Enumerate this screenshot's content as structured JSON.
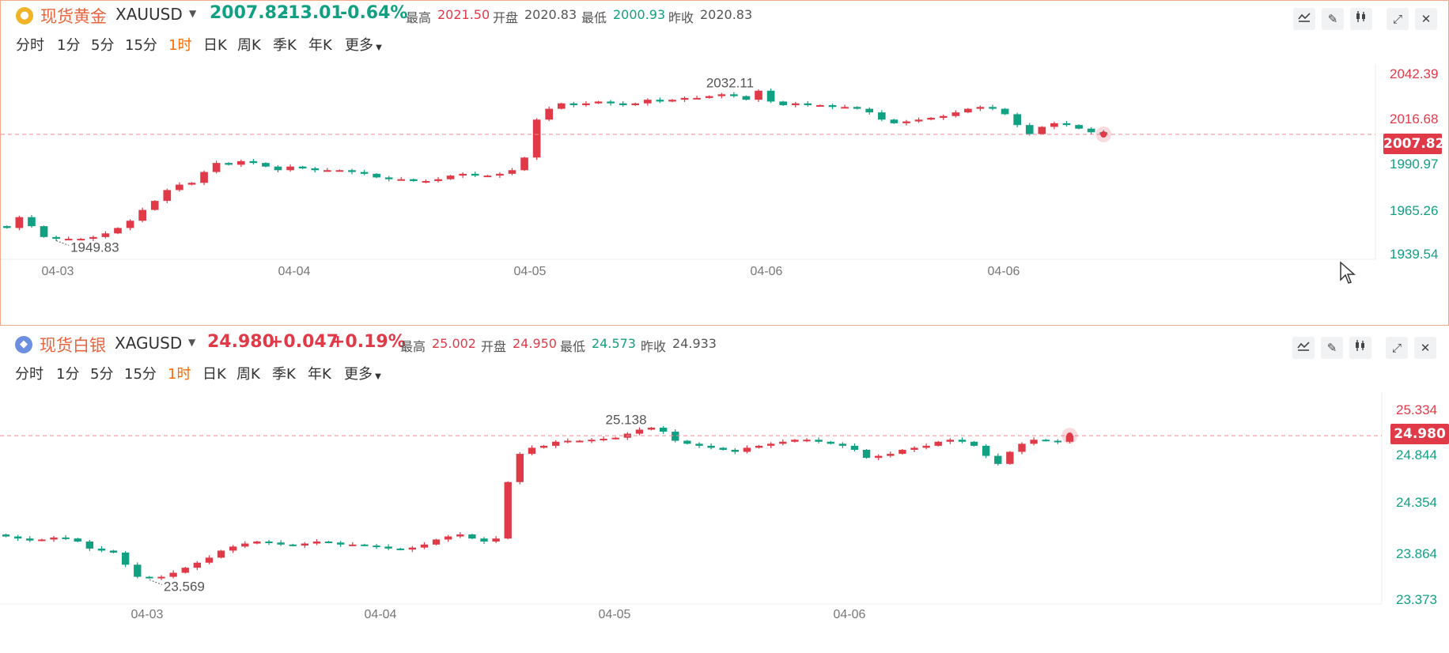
{
  "gold": {
    "name": "现货黄金",
    "code": "XAUUSD",
    "price": "2007.82",
    "change": "-13.01",
    "change_pct": "-0.64%",
    "high_label": "最高",
    "high": "2021.50",
    "open_label": "开盘",
    "open": "2020.83",
    "low_label": "最低",
    "low": "2000.93",
    "prev_label": "昨收",
    "prev": "2020.83",
    "yticks": [
      "2042.39",
      "2016.68",
      "1990.97",
      "1965.26",
      "1939.54"
    ],
    "current_tag": "2007.82",
    "max_marker": "2032.11",
    "min_marker": "1949.83",
    "xticks": [
      "04-03",
      "04-04",
      "04-05",
      "04-06",
      "04-06"
    ]
  },
  "silver": {
    "name": "现货白银",
    "code": "XAGUSD",
    "price": "24.980",
    "change": "+0.047",
    "change_pct": "+0.19%",
    "high_label": "最高",
    "high": "25.002",
    "open_label": "开盘",
    "open": "24.950",
    "low_label": "最低",
    "low": "24.573",
    "prev_label": "昨收",
    "prev": "24.933",
    "yticks": [
      "25.334",
      "24.844",
      "24.354",
      "23.864",
      "23.373"
    ],
    "current_tag": "24.980",
    "max_marker": "25.138",
    "min_marker": "23.569",
    "xticks": [
      "04-03",
      "04-04",
      "04-05",
      "04-06"
    ]
  },
  "periods": [
    "分时",
    "1分",
    "5分",
    "15分",
    "1时",
    "日K",
    "周K",
    "季K",
    "年K",
    "更多"
  ],
  "active_period": "1时",
  "colors": {
    "up": "#e03a48",
    "down": "#12a083",
    "accent": "#ff6a00",
    "name": "#e8643c"
  },
  "tool_icons": [
    "indicator-icon",
    "draw-pencil-icon",
    "candle-style-icon",
    "expand-icon",
    "close-icon"
  ],
  "chart_data": [
    {
      "type": "candlestick",
      "title": "现货黄金 XAUUSD",
      "ylim": [
        1939.54,
        2042.39
      ],
      "current": 2007.82,
      "categories": [
        "04-03",
        "04-04",
        "04-05",
        "04-06",
        "04-06"
      ],
      "close_series": [
        1956,
        1962,
        1957,
        1951,
        1950,
        1950,
        1950,
        1951,
        1953,
        1956,
        1960,
        1966,
        1971,
        1977,
        1980,
        1981,
        1987,
        1992,
        1991,
        1993,
        1992,
        1990,
        1988,
        1990,
        1989,
        1988,
        1988,
        1988,
        1987,
        1986,
        1984,
        1983,
        1983,
        1982,
        1982,
        1983,
        1985,
        1986,
        1985,
        1985,
        1986,
        1988,
        1995,
        2016,
        2022,
        2025,
        2024,
        2025,
        2026,
        2025,
        2024,
        2025,
        2027,
        2026,
        2027,
        2028,
        2028,
        2029,
        2030,
        2029,
        2027,
        2032,
        2026,
        2024,
        2025,
        2024,
        2024,
        2023,
        2023,
        2022,
        2020,
        2016,
        2014,
        2015,
        2016,
        2017,
        2018,
        2020,
        2022,
        2023,
        2022,
        2019,
        2013,
        2008,
        2012,
        2014,
        2013,
        2011,
        2009,
        2007.82
      ]
    },
    {
      "type": "candlestick",
      "title": "现货白银 XAGUSD",
      "ylim": [
        23.373,
        25.334
      ],
      "current": 24.98,
      "categories": [
        "04-03",
        "04-04",
        "04-05",
        "04-06"
      ],
      "close_series": [
        23.98,
        23.96,
        23.94,
        23.95,
        23.97,
        23.96,
        23.93,
        23.86,
        23.84,
        23.82,
        23.7,
        23.58,
        23.57,
        23.58,
        23.62,
        23.67,
        23.72,
        23.77,
        23.84,
        23.88,
        23.91,
        23.93,
        23.92,
        23.9,
        23.89,
        23.91,
        23.93,
        23.92,
        23.9,
        23.9,
        23.89,
        23.88,
        23.86,
        23.85,
        23.87,
        23.9,
        23.95,
        23.98,
        24.0,
        23.96,
        23.93,
        23.96,
        24.52,
        24.8,
        24.86,
        24.88,
        24.92,
        24.93,
        24.93,
        24.94,
        24.95,
        24.96,
        25.0,
        25.04,
        25.06,
        25.02,
        24.93,
        24.9,
        24.88,
        24.86,
        24.84,
        24.82,
        24.86,
        24.88,
        24.9,
        24.92,
        24.94,
        24.94,
        24.92,
        24.9,
        24.88,
        24.84,
        24.76,
        24.78,
        24.8,
        24.84,
        24.86,
        24.88,
        24.92,
        24.94,
        24.92,
        24.88,
        24.78,
        24.7,
        24.82,
        24.9,
        24.94,
        24.93,
        24.92,
        24.98
      ]
    }
  ]
}
